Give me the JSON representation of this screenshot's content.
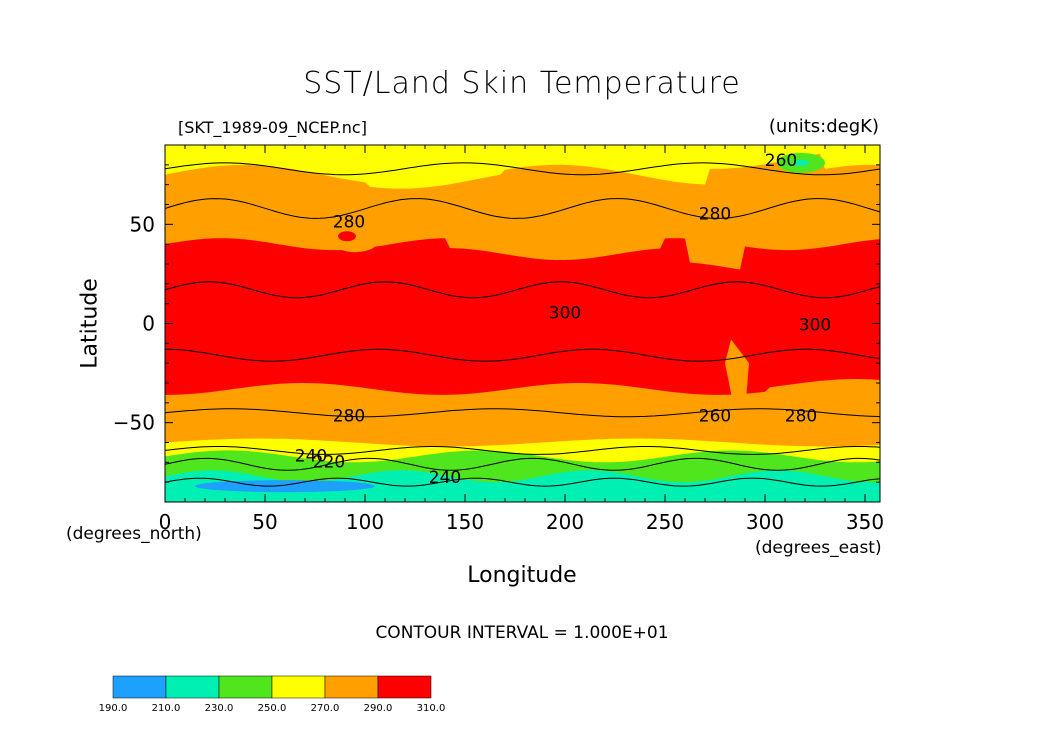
{
  "chart_data": {
    "type": "heatmap",
    "title": "SST/Land Skin Temperature",
    "dataset": "[SKT_1989-09_NCEP.nc]",
    "units": "(units:degK)",
    "xlabel": "Longitude",
    "ylabel": "Latitude",
    "x_units": "(degrees_east)",
    "y_units": "(degrees_north)",
    "xlim": [
      0,
      357.5
    ],
    "ylim": [
      -90,
      90
    ],
    "x_ticks": [
      "0",
      "50",
      "100",
      "150",
      "200",
      "250",
      "300",
      "350"
    ],
    "y_ticks": [
      "50",
      "0",
      "-50"
    ],
    "x_tick_values": [
      0,
      50,
      100,
      150,
      200,
      250,
      300,
      350
    ],
    "y_tick_values": [
      50,
      0,
      -50
    ],
    "contour_interval": "CONTOUR INTERVAL = 1.000E+01",
    "contour_labels": [
      "260",
      "280",
      "300",
      "280",
      "300",
      "280",
      "280",
      "260",
      "240",
      "220",
      "240"
    ],
    "levels": [
      190,
      210,
      230,
      250,
      270,
      290,
      310
    ],
    "level_labels": [
      "190.0",
      "210.0",
      "230.0",
      "250.0",
      "270.0",
      "290.0",
      "310.0"
    ],
    "colors": [
      "#1ea0ff",
      "#00f0b4",
      "#50e61e",
      "#ffff00",
      "#ffa000",
      "#ff0000"
    ],
    "approx_zonal_profile": [
      {
        "lat": 80,
        "temp": 270
      },
      {
        "lat": 60,
        "temp": 280
      },
      {
        "lat": 40,
        "temp": 290
      },
      {
        "lat": 0,
        "temp": 300
      },
      {
        "lat": -40,
        "temp": 290
      },
      {
        "lat": -60,
        "temp": 275
      },
      {
        "lat": -70,
        "temp": 250
      },
      {
        "lat": -80,
        "temp": 230
      },
      {
        "lat": -88,
        "temp": 215
      }
    ]
  }
}
